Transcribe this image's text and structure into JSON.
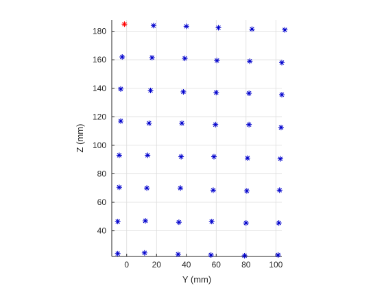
{
  "chart_data": {
    "type": "scatter",
    "title": "",
    "xlabel": "Y (mm)",
    "ylabel": "Z (mm)",
    "xlim": [
      -10,
      104
    ],
    "ylim": [
      22,
      188
    ],
    "xticks": [
      0,
      20,
      40,
      60,
      80,
      100
    ],
    "yticks": [
      40,
      60,
      80,
      100,
      120,
      140,
      160,
      180
    ],
    "grid": true,
    "marker": "asterisk",
    "series": [
      {
        "color": "#0000cc",
        "points": [
          [
            -3,
            162
          ],
          [
            17,
            161.5
          ],
          [
            39,
            161
          ],
          [
            60.5,
            159.5
          ],
          [
            82.5,
            159
          ],
          [
            104,
            158
          ],
          [
            -4,
            139.5
          ],
          [
            16,
            138.5
          ],
          [
            38,
            137.5
          ],
          [
            60,
            137
          ],
          [
            82,
            136.5
          ],
          [
            104,
            135.5
          ],
          [
            -4,
            117
          ],
          [
            15,
            115.5
          ],
          [
            37,
            115.5
          ],
          [
            59.5,
            114.5
          ],
          [
            82,
            114.5
          ],
          [
            103.5,
            112.5
          ],
          [
            -5,
            93
          ],
          [
            14,
            93
          ],
          [
            36.5,
            92
          ],
          [
            58.5,
            92
          ],
          [
            81,
            91
          ],
          [
            103,
            90.5
          ],
          [
            -5,
            70.5
          ],
          [
            13.5,
            70
          ],
          [
            36,
            70
          ],
          [
            58,
            68.5
          ],
          [
            80.5,
            68
          ],
          [
            102.5,
            68.5
          ],
          [
            -6,
            46.5
          ],
          [
            12.5,
            47
          ],
          [
            35,
            46
          ],
          [
            57,
            46.5
          ],
          [
            80,
            45.5
          ],
          [
            102,
            45.5
          ],
          [
            -6,
            24
          ],
          [
            12,
            24.5
          ],
          [
            34.5,
            23.5
          ],
          [
            56.5,
            23
          ],
          [
            79,
            22.5
          ],
          [
            101.5,
            23
          ],
          [
            18,
            184
          ],
          [
            40,
            183.5
          ],
          [
            61.5,
            182.5
          ],
          [
            84,
            181.5
          ],
          [
            106,
            181
          ]
        ]
      },
      {
        "color": "#ff0000",
        "points": [
          [
            -1.5,
            185
          ]
        ]
      }
    ]
  }
}
